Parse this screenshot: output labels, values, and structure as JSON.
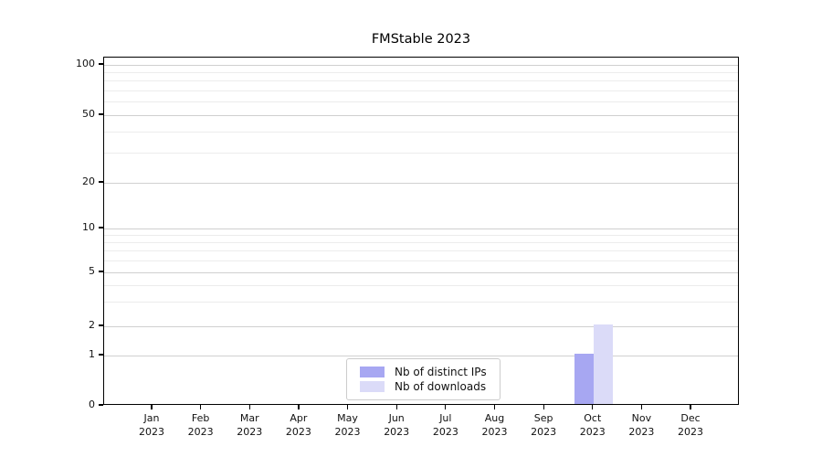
{
  "chart_data": {
    "type": "bar",
    "title": "FMStable 2023",
    "categories": [
      "Jan 2023",
      "Feb 2023",
      "Mar 2023",
      "Apr 2023",
      "May 2023",
      "Jun 2023",
      "Jul 2023",
      "Aug 2023",
      "Sep 2023",
      "Oct 2023",
      "Nov 2023",
      "Dec 2023"
    ],
    "series": [
      {
        "name": "Nb of distinct IPs",
        "color": "#a7a7f2",
        "values": [
          0,
          0,
          0,
          0,
          0,
          0,
          0,
          0,
          0,
          1,
          0,
          0
        ]
      },
      {
        "name": "Nb of downloads",
        "color": "#dbdbf8",
        "values": [
          0,
          0,
          0,
          0,
          0,
          0,
          0,
          0,
          0,
          2,
          0,
          0
        ]
      }
    ],
    "xlabel": "",
    "ylabel": "",
    "yscale": "symlog",
    "ylim": [
      0,
      100
    ],
    "ytick_values": [
      0,
      1,
      2,
      5,
      10,
      20,
      50,
      100
    ],
    "ytick_labels": [
      "0",
      "1",
      "2",
      "5",
      "10",
      "20",
      "50",
      "100"
    ],
    "yminor_values": [
      3,
      4,
      6,
      7,
      8,
      9,
      30,
      40,
      60,
      70,
      80,
      90
    ],
    "grid": "horizontal",
    "legend_position": "lower-center"
  }
}
